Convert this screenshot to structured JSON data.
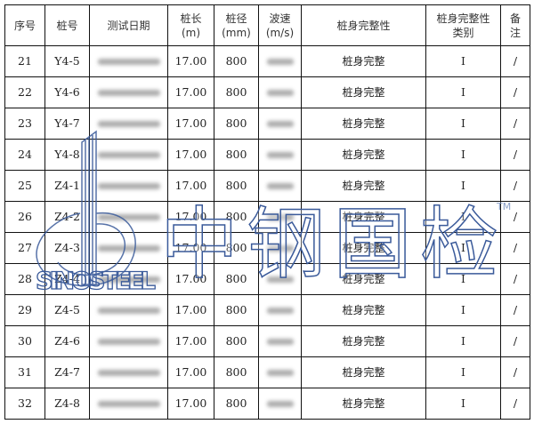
{
  "table": {
    "headers": [
      "序号",
      "桩号",
      "测试日期",
      "桩长\n(m)",
      "桩径\n(mm)",
      "波速\n(m/s)",
      "桩身完整性",
      "桩身完整性\n类别",
      "备\n注"
    ],
    "rows": [
      {
        "no": "21",
        "pile": "Y4-5",
        "length": "17.00",
        "diameter": "800",
        "integrity": "桩身完整",
        "category": "I",
        "remark": "/"
      },
      {
        "no": "22",
        "pile": "Y4-6",
        "length": "17.00",
        "diameter": "800",
        "integrity": "桩身完整",
        "category": "I",
        "remark": "/"
      },
      {
        "no": "23",
        "pile": "Y4-7",
        "length": "17.00",
        "diameter": "800",
        "integrity": "桩身完整",
        "category": "I",
        "remark": "/"
      },
      {
        "no": "24",
        "pile": "Y4-8",
        "length": "17.00",
        "diameter": "800",
        "integrity": "桩身完整",
        "category": "I",
        "remark": "/"
      },
      {
        "no": "25",
        "pile": "Z4-1",
        "length": "17.00",
        "diameter": "800",
        "integrity": "桩身完整",
        "category": "I",
        "remark": "/"
      },
      {
        "no": "26",
        "pile": "Z4-2",
        "length": "17.00",
        "diameter": "800",
        "integrity": "桩身完整",
        "category": "I",
        "remark": "/"
      },
      {
        "no": "27",
        "pile": "Z4-3",
        "length": "17.00",
        "diameter": "800",
        "integrity": "桩身完整",
        "category": "I",
        "remark": "/"
      },
      {
        "no": "28",
        "pile": "Z4-4",
        "length": "17.00",
        "diameter": "800",
        "integrity": "桩身完整",
        "category": "I",
        "remark": "/"
      },
      {
        "no": "29",
        "pile": "Z4-5",
        "length": "17.00",
        "diameter": "800",
        "integrity": "桩身完整",
        "category": "I",
        "remark": "/"
      },
      {
        "no": "30",
        "pile": "Z4-6",
        "length": "17.00",
        "diameter": "800",
        "integrity": "桩身完整",
        "category": "I",
        "remark": "/"
      },
      {
        "no": "31",
        "pile": "Z4-7",
        "length": "17.00",
        "diameter": "800",
        "integrity": "桩身完整",
        "category": "I",
        "remark": "/"
      },
      {
        "no": "32",
        "pile": "Z4-8",
        "length": "17.00",
        "diameter": "800",
        "integrity": "桩身完整",
        "category": "I",
        "remark": "/"
      }
    ]
  },
  "watermark": {
    "brand_cn": "中钢国检",
    "brand_en": "SINOSTEEL",
    "trademark": "TM",
    "color": "#3a5a9a"
  }
}
